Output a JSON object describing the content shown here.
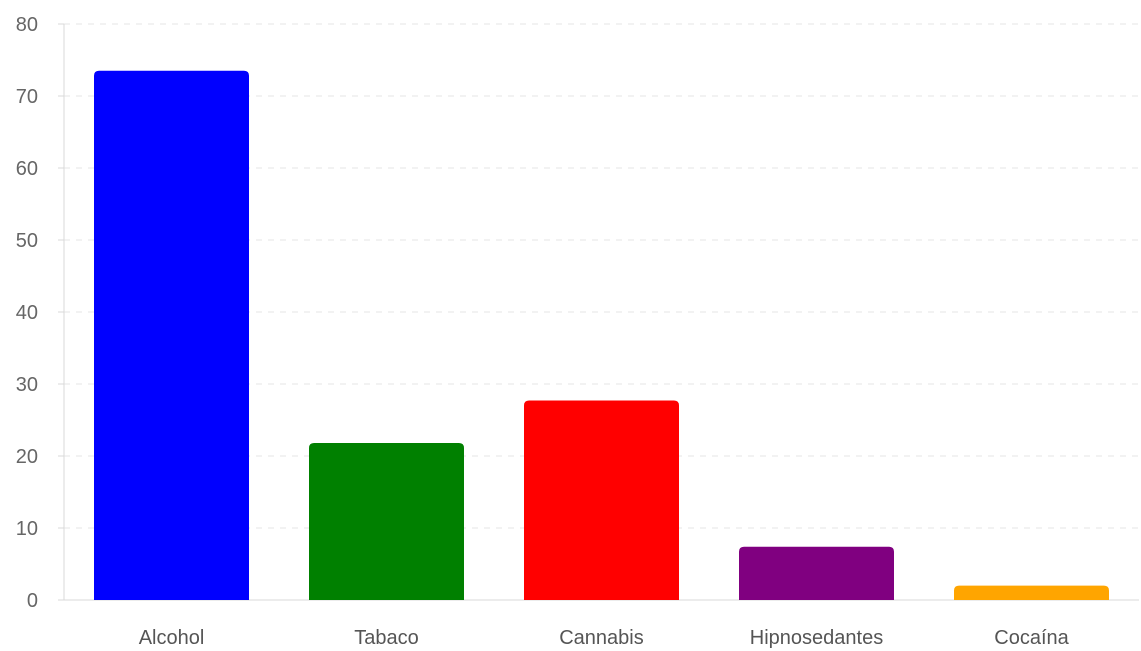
{
  "chart_data": {
    "type": "bar",
    "categories": [
      "Alcohol",
      "Tabaco",
      "Cannabis",
      "Hipnosedantes",
      "Cocaína"
    ],
    "values": [
      73.5,
      21.8,
      27.7,
      7.4,
      2.0
    ],
    "colors": [
      "#0000ff",
      "#008000",
      "#ff0000",
      "#800080",
      "#ffa500"
    ],
    "ylim": [
      0,
      80
    ],
    "yticks": [
      "0",
      "10",
      "20",
      "30",
      "40",
      "50",
      "60",
      "70",
      "80"
    ],
    "grid": true,
    "grid_color": "#e6e6e6",
    "axis_color": "#d9d9d9",
    "legend": "none"
  }
}
